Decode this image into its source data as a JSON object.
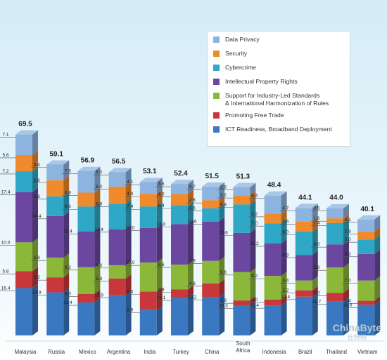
{
  "chart_data": {
    "type": "bar",
    "stacked": true,
    "categories": [
      "Malaysia",
      "Russia",
      "Mexico",
      "Argentina",
      "India",
      "Turkey",
      "China",
      "South\nAfrica",
      "Indonesia",
      "Brazil",
      "Thailand",
      "Vietnam"
    ],
    "totals": [
      "69.5",
      "59.1",
      "56.9",
      "56.5",
      "53.1",
      "52.4",
      "51.5",
      "51.3",
      "48.4",
      "44.1",
      "44.0",
      "40.1"
    ],
    "series": [
      {
        "name": "ICT Readiness, Broadband Deployment",
        "color": "#3a78c2",
        "values": [
          16.4,
          14.9,
          11.4,
          13.9,
          8.8,
          13.1,
          13.2,
          10.3,
          10.4,
          13.4,
          11.7,
          10.6
        ]
      },
      {
        "name": "Promoting Free Trade",
        "color": "#c8373b",
        "values": [
          5.8,
          5.2,
          3.0,
          5.8,
          6.4,
          2.8,
          4.8,
          1.8,
          2.0,
          2.2,
          3.0,
          1.4
        ]
      },
      {
        "name": "Support for Industry-Led Standards\n& International Harmonization of Rules",
        "color": "#8cb83a",
        "values": [
          10.0,
          6.8,
          9.2,
          4.6,
          10.0,
          8.6,
          7.8,
          9.8,
          8.2,
          3.4,
          8.8,
          7.0
        ]
      },
      {
        "name": "Intellectual Property Rights",
        "color": "#6b47a0",
        "values": [
          17.4,
          14.4,
          12.4,
          12.4,
          12.0,
          14.0,
          13.6,
          13.6,
          11.2,
          8.8,
          8.0,
          9.2
        ]
      },
      {
        "name": "Cybercrime",
        "color": "#2ea8c6",
        "values": [
          7.2,
          6.8,
          8.6,
          8.8,
          7.4,
          6.4,
          4.6,
          9.8,
          7.0,
          8.0,
          7.4,
          5.0
        ]
      },
      {
        "name": "Security",
        "color": "#ef8a2d",
        "values": [
          5.6,
          5.6,
          4.8,
          6.0,
          4.4,
          4.0,
          2.8,
          3.2,
          3.2,
          3.6,
          1.6,
          2.8
        ]
      },
      {
        "name": "Data Privacy",
        "color": "#8db3df",
        "values": [
          7.1,
          5.4,
          7.5,
          5.0,
          4.1,
          3.5,
          4.7,
          2.8,
          6.4,
          4.7,
          3.5,
          4.1
        ]
      }
    ],
    "ylim": [
      0,
      70
    ],
    "legend_position": "top-right",
    "grid": false
  },
  "legend_order": [
    6,
    5,
    4,
    3,
    2,
    1,
    0
  ],
  "watermark": {
    "line1": "ChinaByte",
    "line2": "比特网"
  }
}
